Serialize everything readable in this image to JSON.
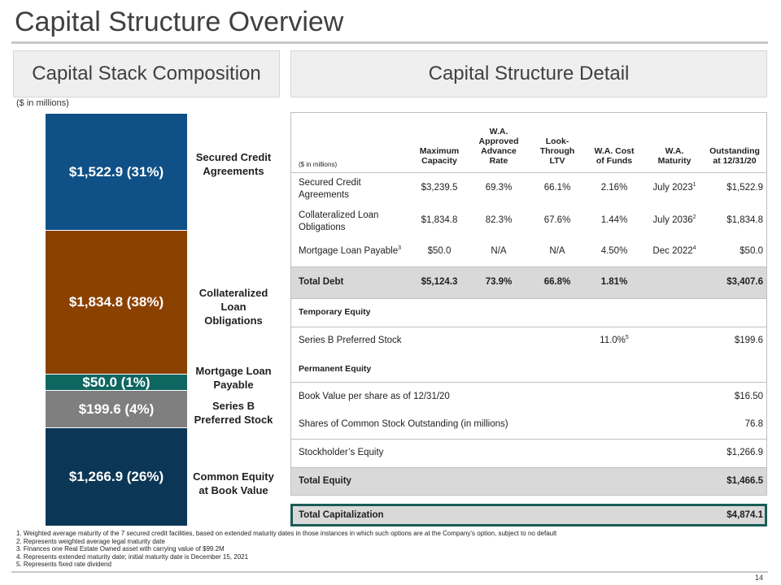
{
  "page_title": "Capital Structure Overview",
  "left_panel": {
    "header": "Capital Stack Composition",
    "units": "($ in millions)",
    "segments": [
      {
        "value": "$1,522.9 (31%)",
        "label_1": "Secured Credit",
        "label_2": "Agreements",
        "color": "#0f5086"
      },
      {
        "value": "$1,834.8 (38%)",
        "label_1": "Collateralized Loan",
        "label_2": "Obligations",
        "color": "#8b4100"
      },
      {
        "value": "$50.0 (1%)",
        "label_1": "Mortgage Loan",
        "label_2": "Payable",
        "color": "#0e6660"
      },
      {
        "value": "$199.6 (4%)",
        "label_1": "Series B",
        "label_2": "Preferred Stock",
        "color": "#7f7f7f"
      },
      {
        "value": "$1,266.9 (26%)",
        "label_1": "Common Equity",
        "label_2": "at Book Value",
        "color": "#0c3656"
      }
    ]
  },
  "right_panel": {
    "header": "Capital Structure Detail",
    "units": "($ in millions)",
    "columns": [
      {
        "l1": "",
        "l2": "",
        "l3": "Maximum",
        "l4": "Capacity"
      },
      {
        "l1": "W.A.",
        "l2": "Approved",
        "l3": "Advance",
        "l4": "Rate"
      },
      {
        "l1": "",
        "l2": "Look-",
        "l3": "Through",
        "l4": "LTV"
      },
      {
        "l1": "",
        "l2": "",
        "l3": "W.A. Cost",
        "l4": "of Funds"
      },
      {
        "l1": "",
        "l2": "",
        "l3": "W.A.",
        "l4": "Maturity"
      },
      {
        "l1": "",
        "l2": "",
        "l3": "Outstanding",
        "l4": "at 12/31/20"
      }
    ],
    "rows": {
      "secured": {
        "name_1": "Secured Credit",
        "name_2": "Agreements",
        "capacity": "$3,239.5",
        "advance": "69.3%",
        "ltv": "66.1%",
        "cost": "2.16%",
        "maturity": "July 2023",
        "maturity_fn": "1",
        "outstanding": "$1,522.9"
      },
      "clo": {
        "name_1": "Collateralized Loan",
        "name_2": "Obligations",
        "capacity": "$1,834.8",
        "advance": "82.3%",
        "ltv": "67.6%",
        "cost": "1.44%",
        "maturity": "July 2036",
        "maturity_fn": "2",
        "outstanding": "$1,834.8"
      },
      "mortgage": {
        "name": "Mortgage Loan Payable",
        "name_fn": "3",
        "capacity": "$50.0",
        "advance": "N/A",
        "ltv": "N/A",
        "cost": "4.50%",
        "maturity": "Dec 2022",
        "maturity_fn": "4",
        "outstanding": "$50.0"
      },
      "total_debt": {
        "name": "Total Debt",
        "capacity": "$5,124.3",
        "advance": "73.9%",
        "ltv": "66.8%",
        "cost": "1.81%",
        "outstanding": "$3,407.6"
      },
      "temporary_equity": {
        "name": "Temporary Equity"
      },
      "series_b": {
        "name": "Series B Preferred Stock",
        "cost": "11.0%",
        "cost_fn": "5",
        "outstanding": "$199.6"
      },
      "permanent_equity": {
        "name": "Permanent Equity"
      },
      "book_value": {
        "name": "Book Value per share as of 12/31/20",
        "outstanding": "$16.50"
      },
      "shares": {
        "name": "Shares of Common Stock Outstanding (in millions)",
        "outstanding": "76.8"
      },
      "stockholders_equity": {
        "name": "Stockholder’s Equity",
        "outstanding": "$1,266.9"
      },
      "total_equity": {
        "name": "Total Equity",
        "outstanding": "$1,466.5"
      },
      "total_capitalization": {
        "name": "Total Capitalization",
        "outstanding": "$4,874.1"
      }
    }
  },
  "footnotes": [
    "1. Weighted average maturity of the 7 secured credit facilities, based on extended maturity dates in those instances in which such options are at the Company’s option, subject to no default",
    "2. Represents weighted average legal maturity date",
    "3. Finances one Real Estate Owned asset with carrying value of $99.2M",
    "4. Represents extended maturity date; initial maturity date is December 15, 2021",
    "5. Represents fixed rate dividend"
  ],
  "page_number": "14"
}
